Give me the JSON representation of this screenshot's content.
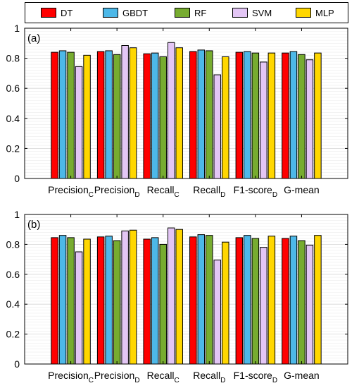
{
  "legend": [
    {
      "name": "DT",
      "color": "#ff0000"
    },
    {
      "name": "GBDT",
      "color": "#4db8e8"
    },
    {
      "name": "RF",
      "color": "#77ac30"
    },
    {
      "name": "SVM",
      "color": "#e3c6f5"
    },
    {
      "name": "MLP",
      "color": "#ffd700"
    }
  ],
  "chart_data": [
    {
      "type": "bar",
      "panel_label": "(a)",
      "categories": [
        {
          "base": "Precision",
          "sub": "C"
        },
        {
          "base": "Precision",
          "sub": "D"
        },
        {
          "base": "Recall",
          "sub": "C"
        },
        {
          "base": "Recall",
          "sub": "D"
        },
        {
          "base": "F1-score",
          "sub": "D"
        },
        {
          "base": "G-mean",
          "sub": ""
        }
      ],
      "series": [
        {
          "name": "DT",
          "values": [
            0.84,
            0.845,
            0.83,
            0.845,
            0.84,
            0.835
          ]
        },
        {
          "name": "GBDT",
          "values": [
            0.85,
            0.85,
            0.835,
            0.855,
            0.845,
            0.845
          ]
        },
        {
          "name": "RF",
          "values": [
            0.84,
            0.825,
            0.81,
            0.85,
            0.835,
            0.825
          ]
        },
        {
          "name": "SVM",
          "values": [
            0.745,
            0.885,
            0.905,
            0.69,
            0.775,
            0.79
          ]
        },
        {
          "name": "MLP",
          "values": [
            0.82,
            0.87,
            0.87,
            0.81,
            0.835,
            0.835
          ]
        }
      ],
      "ylim": [
        0,
        1
      ],
      "yticks": [
        "0",
        "0.2",
        "0.4",
        "0.6",
        "0.8",
        "1"
      ],
      "grid": true
    },
    {
      "type": "bar",
      "panel_label": "(b)",
      "categories": [
        {
          "base": "Precision",
          "sub": "C"
        },
        {
          "base": "Precision",
          "sub": "D"
        },
        {
          "base": "Recall",
          "sub": "C"
        },
        {
          "base": "Recall",
          "sub": "D"
        },
        {
          "base": "F1-score",
          "sub": "D"
        },
        {
          "base": "G-mean",
          "sub": ""
        }
      ],
      "series": [
        {
          "name": "DT",
          "values": [
            0.845,
            0.85,
            0.835,
            0.85,
            0.845,
            0.84
          ]
        },
        {
          "name": "GBDT",
          "values": [
            0.86,
            0.855,
            0.845,
            0.865,
            0.86,
            0.855
          ]
        },
        {
          "name": "RF",
          "values": [
            0.845,
            0.825,
            0.8,
            0.86,
            0.84,
            0.825
          ]
        },
        {
          "name": "SVM",
          "values": [
            0.75,
            0.89,
            0.91,
            0.695,
            0.78,
            0.795
          ]
        },
        {
          "name": "MLP",
          "values": [
            0.835,
            0.895,
            0.9,
            0.815,
            0.855,
            0.86
          ]
        }
      ],
      "ylim": [
        0,
        1
      ],
      "yticks": [
        "0",
        "0.2",
        "0.4",
        "0.6",
        "0.8",
        "1"
      ],
      "grid": true
    }
  ]
}
